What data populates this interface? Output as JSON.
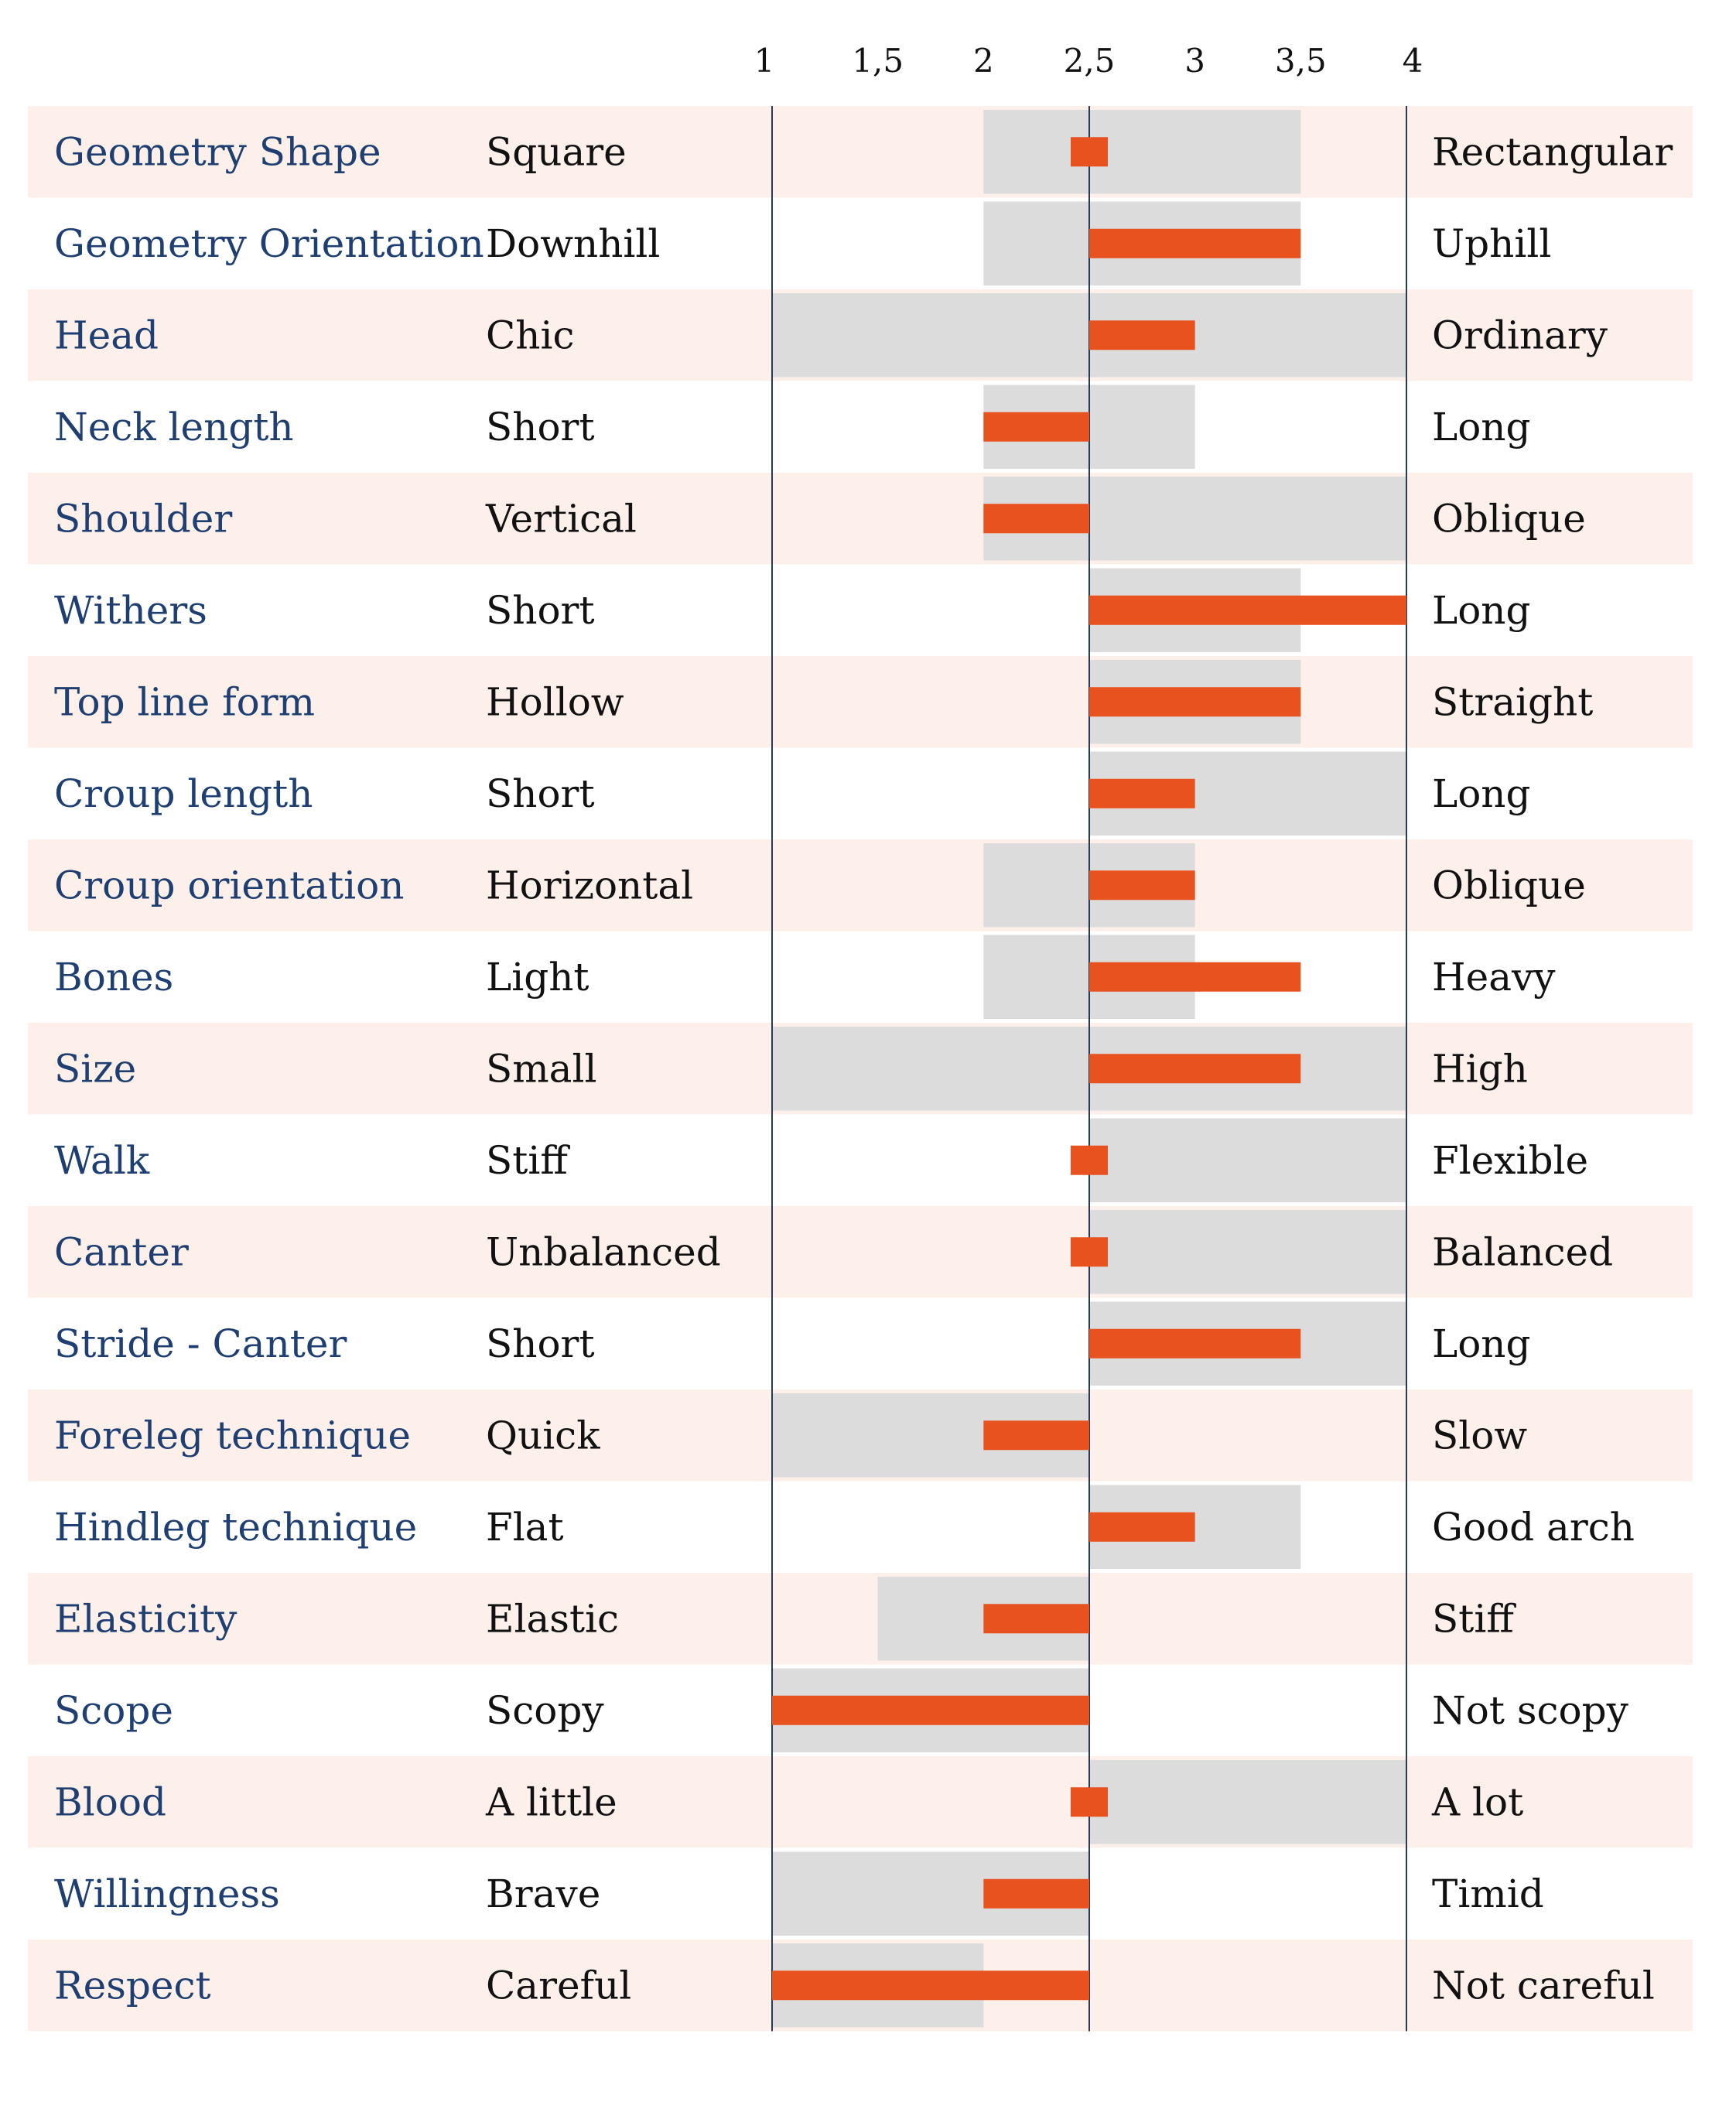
{
  "chart_data": {
    "type": "bar",
    "title": "",
    "xlabel": "",
    "ylabel": "",
    "xlim": [
      1,
      4
    ],
    "midpoint": 2.5,
    "ticks": [
      "1",
      "1,5",
      "2",
      "2,5",
      "3",
      "3,5",
      "4"
    ],
    "tick_values": [
      1,
      1.5,
      2,
      2.5,
      3,
      3.5,
      4
    ],
    "grid": false,
    "legend": "none",
    "colors": {
      "value_bar": "#e8521f",
      "range_band": "#dcdcdc",
      "row_band": "#fdf0eb",
      "trait_text": "#1f3f72",
      "axis_line": "#2a3a55"
    },
    "rows": [
      {
        "trait": "Geometry Shape",
        "low": "Square",
        "high": "Rectangular",
        "value": 2.5,
        "range": [
          2,
          3.5
        ]
      },
      {
        "trait": "Geometry Orientation",
        "low": "Downhill",
        "high": "Uphill",
        "value": 3.5,
        "range": [
          2,
          3.5
        ]
      },
      {
        "trait": "Head",
        "low": "Chic",
        "high": "Ordinary",
        "value": 3,
        "range": [
          1,
          4
        ]
      },
      {
        "trait": "Neck length",
        "low": "Short",
        "high": "Long",
        "value": 2,
        "range": [
          2,
          3
        ]
      },
      {
        "trait": "Shoulder",
        "low": "Vertical",
        "high": "Oblique",
        "value": 2,
        "range": [
          2,
          4
        ]
      },
      {
        "trait": "Withers",
        "low": "Short",
        "high": "Long",
        "value": 4,
        "range": [
          2.5,
          3.5
        ]
      },
      {
        "trait": "Top line form",
        "low": "Hollow",
        "high": "Straight",
        "value": 3.5,
        "range": [
          2.5,
          3.5
        ]
      },
      {
        "trait": "Croup length",
        "low": "Short",
        "high": "Long",
        "value": 3,
        "range": [
          2.5,
          4
        ]
      },
      {
        "trait": "Croup orientation",
        "low": "Horizontal",
        "high": "Oblique",
        "value": 3,
        "range": [
          2,
          3
        ]
      },
      {
        "trait": "Bones",
        "low": "Light",
        "high": "Heavy",
        "value": 3.5,
        "range": [
          2,
          3
        ]
      },
      {
        "trait": "Size",
        "low": "Small",
        "high": "High",
        "value": 3.5,
        "range": [
          1,
          4
        ]
      },
      {
        "trait": "Walk",
        "low": "Stiff",
        "high": "Flexible",
        "value": 2.5,
        "range": [
          2.5,
          4
        ]
      },
      {
        "trait": "Canter",
        "low": "Unbalanced",
        "high": "Balanced",
        "value": 2.5,
        "range": [
          2.5,
          4
        ]
      },
      {
        "trait": "Stride - Canter",
        "low": "Short",
        "high": "Long",
        "value": 3.5,
        "range": [
          2.5,
          4
        ]
      },
      {
        "trait": "Foreleg technique",
        "low": "Quick",
        "high": "Slow",
        "value": 2,
        "range": [
          1,
          2.5
        ]
      },
      {
        "trait": "Hindleg technique",
        "low": "Flat",
        "high": "Good arch",
        "value": 3,
        "range": [
          2.5,
          3.5
        ]
      },
      {
        "trait": "Elasticity",
        "low": "Elastic",
        "high": "Stiff",
        "value": 2,
        "range": [
          1.5,
          2.5
        ]
      },
      {
        "trait": "Scope",
        "low": "Scopy",
        "high": "Not scopy",
        "value": 1,
        "range": [
          1,
          2.5
        ]
      },
      {
        "trait": "Blood",
        "low": "A little",
        "high": "A lot",
        "value": 2.5,
        "range": [
          2.5,
          4
        ]
      },
      {
        "trait": "Willingness",
        "low": "Brave",
        "high": "Timid",
        "value": 2,
        "range": [
          1,
          2.5
        ]
      },
      {
        "trait": "Respect",
        "low": "Careful",
        "high": "Not careful",
        "value": 1,
        "range": [
          1,
          2
        ]
      }
    ]
  }
}
